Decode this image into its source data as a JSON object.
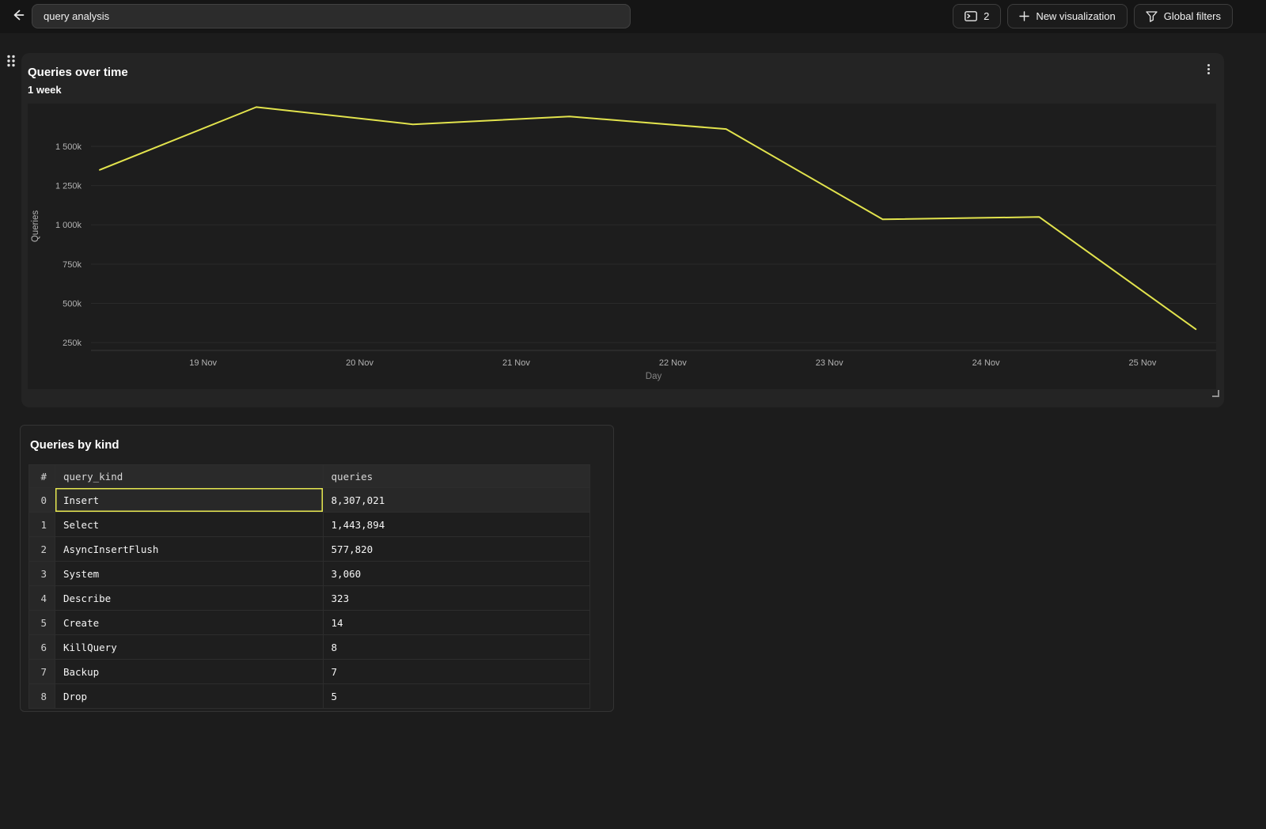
{
  "topbar": {
    "back_icon": "arrow-left",
    "title_value": "query analysis",
    "console_button": {
      "icon": "console-window",
      "count": "2"
    },
    "new_visualization_button": {
      "icon": "plus",
      "label": "New visualization"
    },
    "global_filters_button": {
      "icon": "funnel",
      "label": "Global filters"
    }
  },
  "chart_panel": {
    "title": "Queries over time",
    "subtitle": "1 week",
    "menu_icon": "kebab-vertical",
    "drag_handle_icon": "grip-dots",
    "resize_handle_icon": "corner-resize"
  },
  "chart_data": {
    "type": "line",
    "title": "Queries over time",
    "subtitle": "1 week",
    "xlabel": "Day",
    "ylabel": "Queries",
    "grid": true,
    "legend": "none",
    "line_color": "#e2e34d",
    "plot_bg": "#1d1d1d",
    "x_unit": "days since 18 Nov 00:00",
    "xlim_days": [
      -0.12,
      7.47
    ],
    "ylim": [
      200000,
      1772000
    ],
    "y_ticks": [
      {
        "value": 250000,
        "label": "250k"
      },
      {
        "value": 500000,
        "label": "500k"
      },
      {
        "value": 750000,
        "label": "750k"
      },
      {
        "value": 1000000,
        "label": "1 000k"
      },
      {
        "value": 1250000,
        "label": "1 250k"
      },
      {
        "value": 1500000,
        "label": "1 500k"
      }
    ],
    "x_ticks": [
      {
        "day": 1,
        "label": "19 Nov"
      },
      {
        "day": 2,
        "label": "20 Nov"
      },
      {
        "day": 3,
        "label": "21 Nov"
      },
      {
        "day": 4,
        "label": "22 Nov"
      },
      {
        "day": 5,
        "label": "23 Nov"
      },
      {
        "day": 6,
        "label": "24 Nov"
      },
      {
        "day": 7,
        "label": "25 Nov"
      }
    ],
    "series": [
      {
        "name": "Queries",
        "color": "#e2e34d",
        "points": [
          {
            "x_day": 0.34,
            "date": "18 Nov",
            "value": 1350000
          },
          {
            "x_day": 1.34,
            "date": "19 Nov",
            "value": 1750000
          },
          {
            "x_day": 2.34,
            "date": "20 Nov",
            "value": 1640000
          },
          {
            "x_day": 3.34,
            "date": "21 Nov",
            "value": 1690000
          },
          {
            "x_day": 4.34,
            "date": "22 Nov",
            "value": 1610000
          },
          {
            "x_day": 5.34,
            "date": "23 Nov",
            "value": 1035000
          },
          {
            "x_day": 6.34,
            "date": "24 Nov",
            "value": 1050000
          },
          {
            "x_day": 7.34,
            "date": "25 Nov",
            "value": 335000
          }
        ]
      }
    ]
  },
  "table_panel": {
    "title": "Queries by kind",
    "columns": [
      "#",
      "query_kind",
      "queries"
    ],
    "selected_cell_color": "#e6e750",
    "rows": [
      {
        "index": "0",
        "query_kind": "Insert",
        "queries": "8,307,021",
        "selected": true
      },
      {
        "index": "1",
        "query_kind": "Select",
        "queries": "1,443,894",
        "selected": false
      },
      {
        "index": "2",
        "query_kind": "AsyncInsertFlush",
        "queries": "577,820",
        "selected": false
      },
      {
        "index": "3",
        "query_kind": "System",
        "queries": "3,060",
        "selected": false
      },
      {
        "index": "4",
        "query_kind": "Describe",
        "queries": "323",
        "selected": false
      },
      {
        "index": "5",
        "query_kind": "Create",
        "queries": "14",
        "selected": false
      },
      {
        "index": "6",
        "query_kind": "KillQuery",
        "queries": "8",
        "selected": false
      },
      {
        "index": "7",
        "query_kind": "Backup",
        "queries": "7",
        "selected": false
      },
      {
        "index": "8",
        "query_kind": "Drop",
        "queries": "5",
        "selected": false
      }
    ]
  }
}
